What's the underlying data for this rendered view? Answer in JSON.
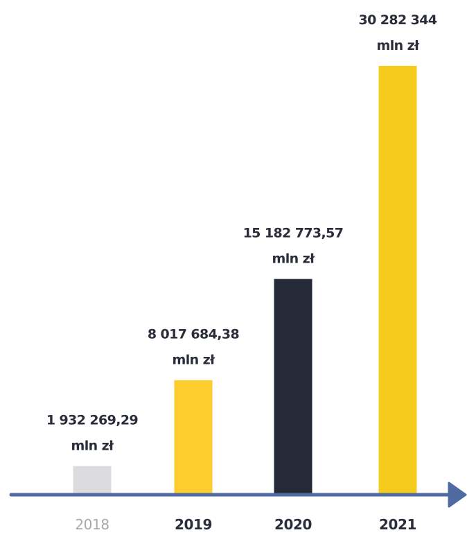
{
  "chart_data": {
    "type": "bar",
    "categories": [
      "2018",
      "2019",
      "2020",
      "2021"
    ],
    "values": [
      1932269.29,
      8017684.38,
      15182773.57,
      30282344
    ],
    "data_labels": [
      {
        "value_text": "1 932 269,29",
        "unit_text": "mln zł"
      },
      {
        "value_text": "8 017 684,38",
        "unit_text": "mln zł"
      },
      {
        "value_text": "15 182 773,57",
        "unit_text": "mln zł"
      },
      {
        "value_text": "30 282 344",
        "unit_text": "mln zł"
      }
    ],
    "bar_colors": [
      "#dcdcde",
      "#fccd2c",
      "#252a38",
      "#f5cc1d"
    ],
    "category_label_colors": [
      "#a8a8ac",
      "#2a2d3a",
      "#2a2d3a",
      "#2a2d3a"
    ],
    "axis_color": "#4f6aa1",
    "ylim": [
      0,
      30282344
    ],
    "grid": false,
    "legend": "none"
  }
}
